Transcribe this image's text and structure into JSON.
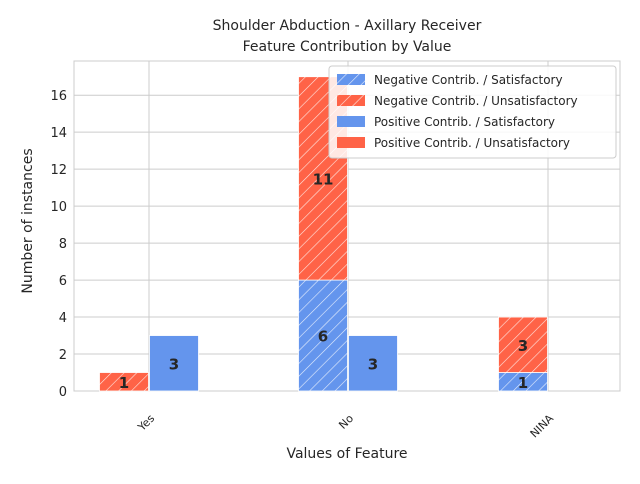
{
  "chart_data": {
    "type": "bar",
    "title_line1": "Shoulder Abduction - Axillary Receiver",
    "title_line2": "Feature Contribution by Value",
    "xlabel": "Values of Feature",
    "ylabel": "Number of instances",
    "categories": [
      "Yes",
      "No",
      "NINA"
    ],
    "ylim": [
      0,
      17.85
    ],
    "yticks": [
      0,
      2,
      4,
      6,
      8,
      10,
      12,
      14,
      16
    ],
    "grid": true,
    "legend_position": "top-right",
    "groups": [
      {
        "name": "Negative Contrib.",
        "hatched": true,
        "series": [
          {
            "name": "Negative Contrib. / Satisfactory",
            "color": "#6495ED",
            "values": [
              0,
              6,
              1
            ]
          },
          {
            "name": "Negative Contrib. / Unsatisfactory",
            "color": "#FF6347",
            "values": [
              1,
              11,
              3
            ]
          }
        ]
      },
      {
        "name": "Positive Contrib.",
        "hatched": false,
        "series": [
          {
            "name": "Positive Contrib. / Satisfactory",
            "color": "#6495ED",
            "values": [
              3,
              3,
              0
            ]
          },
          {
            "name": "Positive Contrib. / Unsatisfactory",
            "color": "#FF6347",
            "values": [
              0,
              0,
              0
            ]
          }
        ]
      }
    ]
  }
}
